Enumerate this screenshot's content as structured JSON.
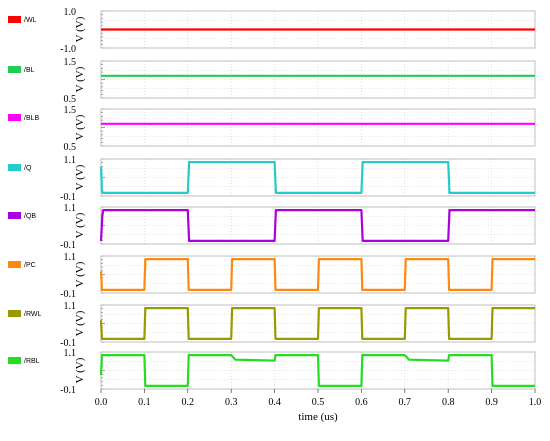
{
  "chart_data": {
    "type": "line",
    "xlabel": "time (us)",
    "ylabel": "V (V)",
    "x_ticks": [
      "0.0",
      "0.1",
      "0.2",
      "0.3",
      "0.4",
      "0.5",
      "0.6",
      "0.7",
      "0.8",
      "0.9",
      "1.0"
    ],
    "xlim": [
      0,
      1.0
    ],
    "grid": true,
    "panels": [
      {
        "name": "/WL",
        "color": "#ff0000",
        "y_ticks": [
          "1.0",
          "-1.0"
        ],
        "ylim": [
          -1.0,
          1.0
        ],
        "points": [
          [
            0.0,
            0.0
          ],
          [
            1.0,
            0.0
          ]
        ]
      },
      {
        "name": "/BL",
        "color": "#22cc55",
        "y_ticks": [
          "1.5",
          "0.5"
        ],
        "ylim": [
          0.5,
          1.5
        ],
        "points": [
          [
            0.0,
            1.1
          ],
          [
            1.0,
            1.1
          ]
        ]
      },
      {
        "name": "/BLB",
        "color": "#ff00ff",
        "y_ticks": [
          "1.5",
          "0.5"
        ],
        "ylim": [
          0.5,
          1.5
        ],
        "points": [
          [
            0.0,
            1.1
          ],
          [
            1.0,
            1.1
          ]
        ]
      },
      {
        "name": "/Q",
        "color": "#22cccc",
        "y_ticks": [
          "1.1",
          "-0.1"
        ],
        "ylim": [
          -0.1,
          1.1
        ],
        "points": [
          [
            0.0,
            0.85
          ],
          [
            0.002,
            0.1
          ],
          [
            0.004,
            0.0
          ],
          [
            0.2,
            0.0
          ],
          [
            0.203,
            1.0
          ],
          [
            0.4,
            1.0
          ],
          [
            0.403,
            0.0
          ],
          [
            0.6,
            0.0
          ],
          [
            0.603,
            1.0
          ],
          [
            0.8,
            1.0
          ],
          [
            0.803,
            0.0
          ],
          [
            1.0,
            0.0
          ]
        ]
      },
      {
        "name": "/QB",
        "color": "#aa00dd",
        "y_ticks": [
          "1.1",
          "-0.1"
        ],
        "ylim": [
          -0.1,
          1.1
        ],
        "points": [
          [
            0.0,
            0.0
          ],
          [
            0.003,
            0.8
          ],
          [
            0.005,
            1.0
          ],
          [
            0.2,
            1.0
          ],
          [
            0.203,
            0.0
          ],
          [
            0.4,
            0.0
          ],
          [
            0.403,
            1.0
          ],
          [
            0.6,
            1.0
          ],
          [
            0.603,
            0.0
          ],
          [
            0.8,
            0.0
          ],
          [
            0.803,
            1.0
          ],
          [
            1.0,
            1.0
          ]
        ]
      },
      {
        "name": "/PC",
        "color": "#ff8811",
        "y_ticks": [
          "1.1",
          "-0.1"
        ],
        "ylim": [
          -0.1,
          1.1
        ],
        "points": [
          [
            0.0,
            0.6
          ],
          [
            0.002,
            0.0
          ],
          [
            0.1,
            0.0
          ],
          [
            0.102,
            1.0
          ],
          [
            0.2,
            1.0
          ],
          [
            0.202,
            0.0
          ],
          [
            0.3,
            0.0
          ],
          [
            0.302,
            1.0
          ],
          [
            0.4,
            1.0
          ],
          [
            0.402,
            0.0
          ],
          [
            0.5,
            0.0
          ],
          [
            0.502,
            1.0
          ],
          [
            0.6,
            1.0
          ],
          [
            0.602,
            0.0
          ],
          [
            0.7,
            0.0
          ],
          [
            0.702,
            1.0
          ],
          [
            0.8,
            1.0
          ],
          [
            0.802,
            0.0
          ],
          [
            0.9,
            0.0
          ],
          [
            0.902,
            1.0
          ],
          [
            1.0,
            1.0
          ]
        ]
      },
      {
        "name": "/RWL",
        "color": "#999900",
        "y_ticks": [
          "1.1",
          "-0.1"
        ],
        "ylim": [
          -0.1,
          1.1
        ],
        "points": [
          [
            0.0,
            0.6
          ],
          [
            0.002,
            0.0
          ],
          [
            0.1,
            0.0
          ],
          [
            0.102,
            1.0
          ],
          [
            0.2,
            1.0
          ],
          [
            0.202,
            0.0
          ],
          [
            0.3,
            0.0
          ],
          [
            0.302,
            1.0
          ],
          [
            0.4,
            1.0
          ],
          [
            0.402,
            0.0
          ],
          [
            0.5,
            0.0
          ],
          [
            0.502,
            1.0
          ],
          [
            0.6,
            1.0
          ],
          [
            0.602,
            0.0
          ],
          [
            0.7,
            0.0
          ],
          [
            0.702,
            1.0
          ],
          [
            0.8,
            1.0
          ],
          [
            0.802,
            0.0
          ],
          [
            0.9,
            0.0
          ],
          [
            0.902,
            1.0
          ],
          [
            1.0,
            1.0
          ]
        ]
      },
      {
        "name": "/RBL",
        "color": "#22dd22",
        "y_ticks": [
          "1.1",
          "-0.1"
        ],
        "ylim": [
          -0.1,
          1.1
        ],
        "points": [
          [
            0.0,
            0.35
          ],
          [
            0.002,
            1.0
          ],
          [
            0.1,
            1.0
          ],
          [
            0.102,
            0.0
          ],
          [
            0.2,
            0.0
          ],
          [
            0.202,
            1.0
          ],
          [
            0.3,
            1.0
          ],
          [
            0.31,
            0.85
          ],
          [
            0.4,
            0.82
          ],
          [
            0.402,
            1.0
          ],
          [
            0.5,
            1.0
          ],
          [
            0.502,
            0.0
          ],
          [
            0.6,
            0.0
          ],
          [
            0.602,
            1.0
          ],
          [
            0.7,
            1.0
          ],
          [
            0.71,
            0.85
          ],
          [
            0.8,
            0.82
          ],
          [
            0.802,
            1.0
          ],
          [
            0.9,
            1.0
          ],
          [
            0.902,
            0.0
          ],
          [
            1.0,
            0.0
          ]
        ]
      }
    ]
  }
}
